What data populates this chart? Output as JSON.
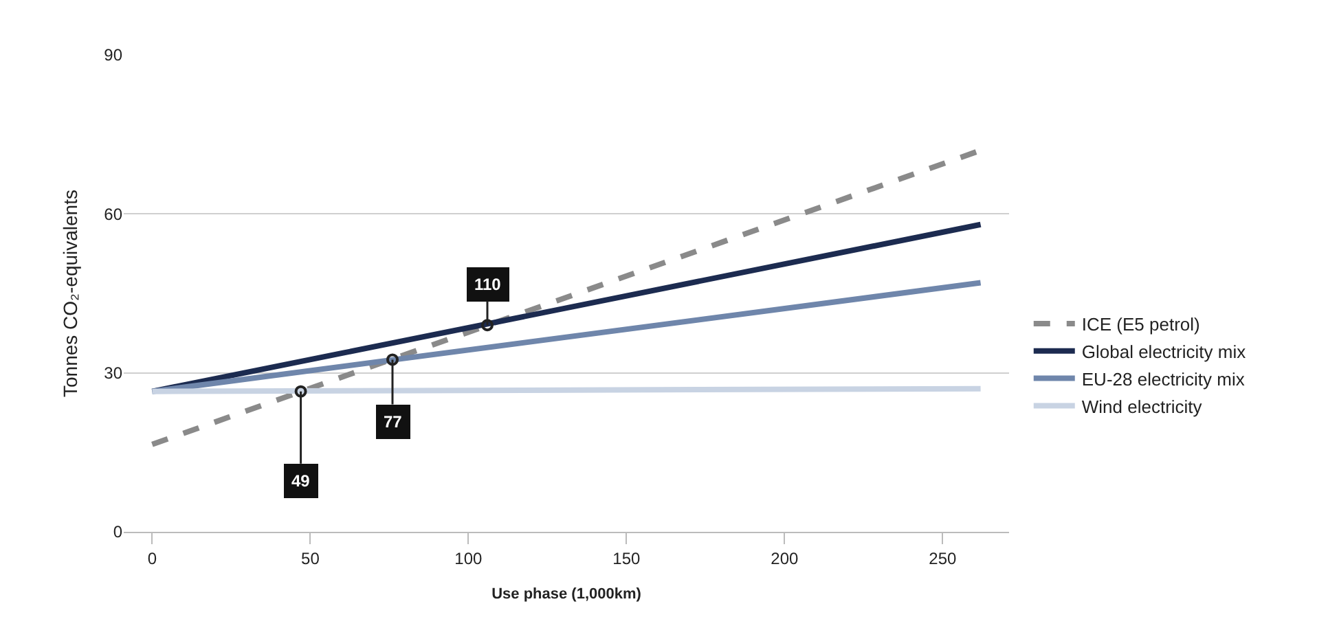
{
  "chart_data": {
    "type": "line",
    "xlabel": "Use phase (1,000km)",
    "ylabel": "Tonnes CO₂-equivalents",
    "x": [
      0,
      262
    ],
    "series": [
      {
        "name": "ICE (E5 petrol)",
        "color": "#8a8a8a",
        "values": [
          16.5,
          72
        ],
        "line_style": "dashed"
      },
      {
        "name": "Global electricity mix",
        "color": "#1c2b50",
        "values": [
          26.5,
          58
        ]
      },
      {
        "name": "EU-28 electricity mix",
        "color": "#6f86ab",
        "values": [
          26.5,
          47
        ]
      },
      {
        "name": "Wind electricity",
        "color": "#c8d3e3",
        "values": [
          26.5,
          27
        ]
      }
    ],
    "annotations": [
      {
        "text": "49",
        "x": 47,
        "y": 26.5
      },
      {
        "text": "77",
        "x": 76,
        "y": 32.5
      },
      {
        "text": "110",
        "x": 106,
        "y": 39
      }
    ],
    "xlim": [
      -9,
      271
    ],
    "ylim": [
      0,
      90
    ],
    "xticks": [
      0,
      50,
      100,
      150,
      200,
      250
    ],
    "yticks": [
      0,
      30,
      60,
      90
    ],
    "grid": "y",
    "legend": "right",
    "marker": "none",
    "line_style": "solid"
  }
}
